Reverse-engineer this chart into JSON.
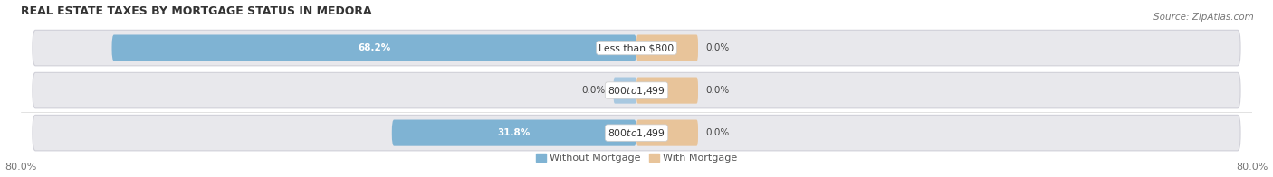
{
  "title": "REAL ESTATE TAXES BY MORTGAGE STATUS IN MEDORA",
  "source": "Source: ZipAtlas.com",
  "rows": [
    {
      "label": "Less than $800",
      "without_mortgage": 68.2,
      "with_mortgage": 0.0
    },
    {
      "label": "$800 to $1,499",
      "without_mortgage": 0.0,
      "with_mortgage": 0.0
    },
    {
      "label": "$800 to $1,499",
      "without_mortgage": 31.8,
      "with_mortgage": 0.0
    }
  ],
  "xlim_left": -80.0,
  "xlim_right": 80.0,
  "x_left_label": "80.0%",
  "x_right_label": "80.0%",
  "color_without": "#7fb3d3",
  "color_with": "#e8c49a",
  "color_without_small": "#a8c8e0",
  "bar_height": 0.62,
  "pill_bg_color": "#e8e8ec",
  "pill_border_color": "#d0d0d8",
  "title_fontsize": 9,
  "source_fontsize": 7.5,
  "label_fontsize": 7.8,
  "value_fontsize": 7.5,
  "tick_fontsize": 8,
  "legend_fontsize": 8
}
